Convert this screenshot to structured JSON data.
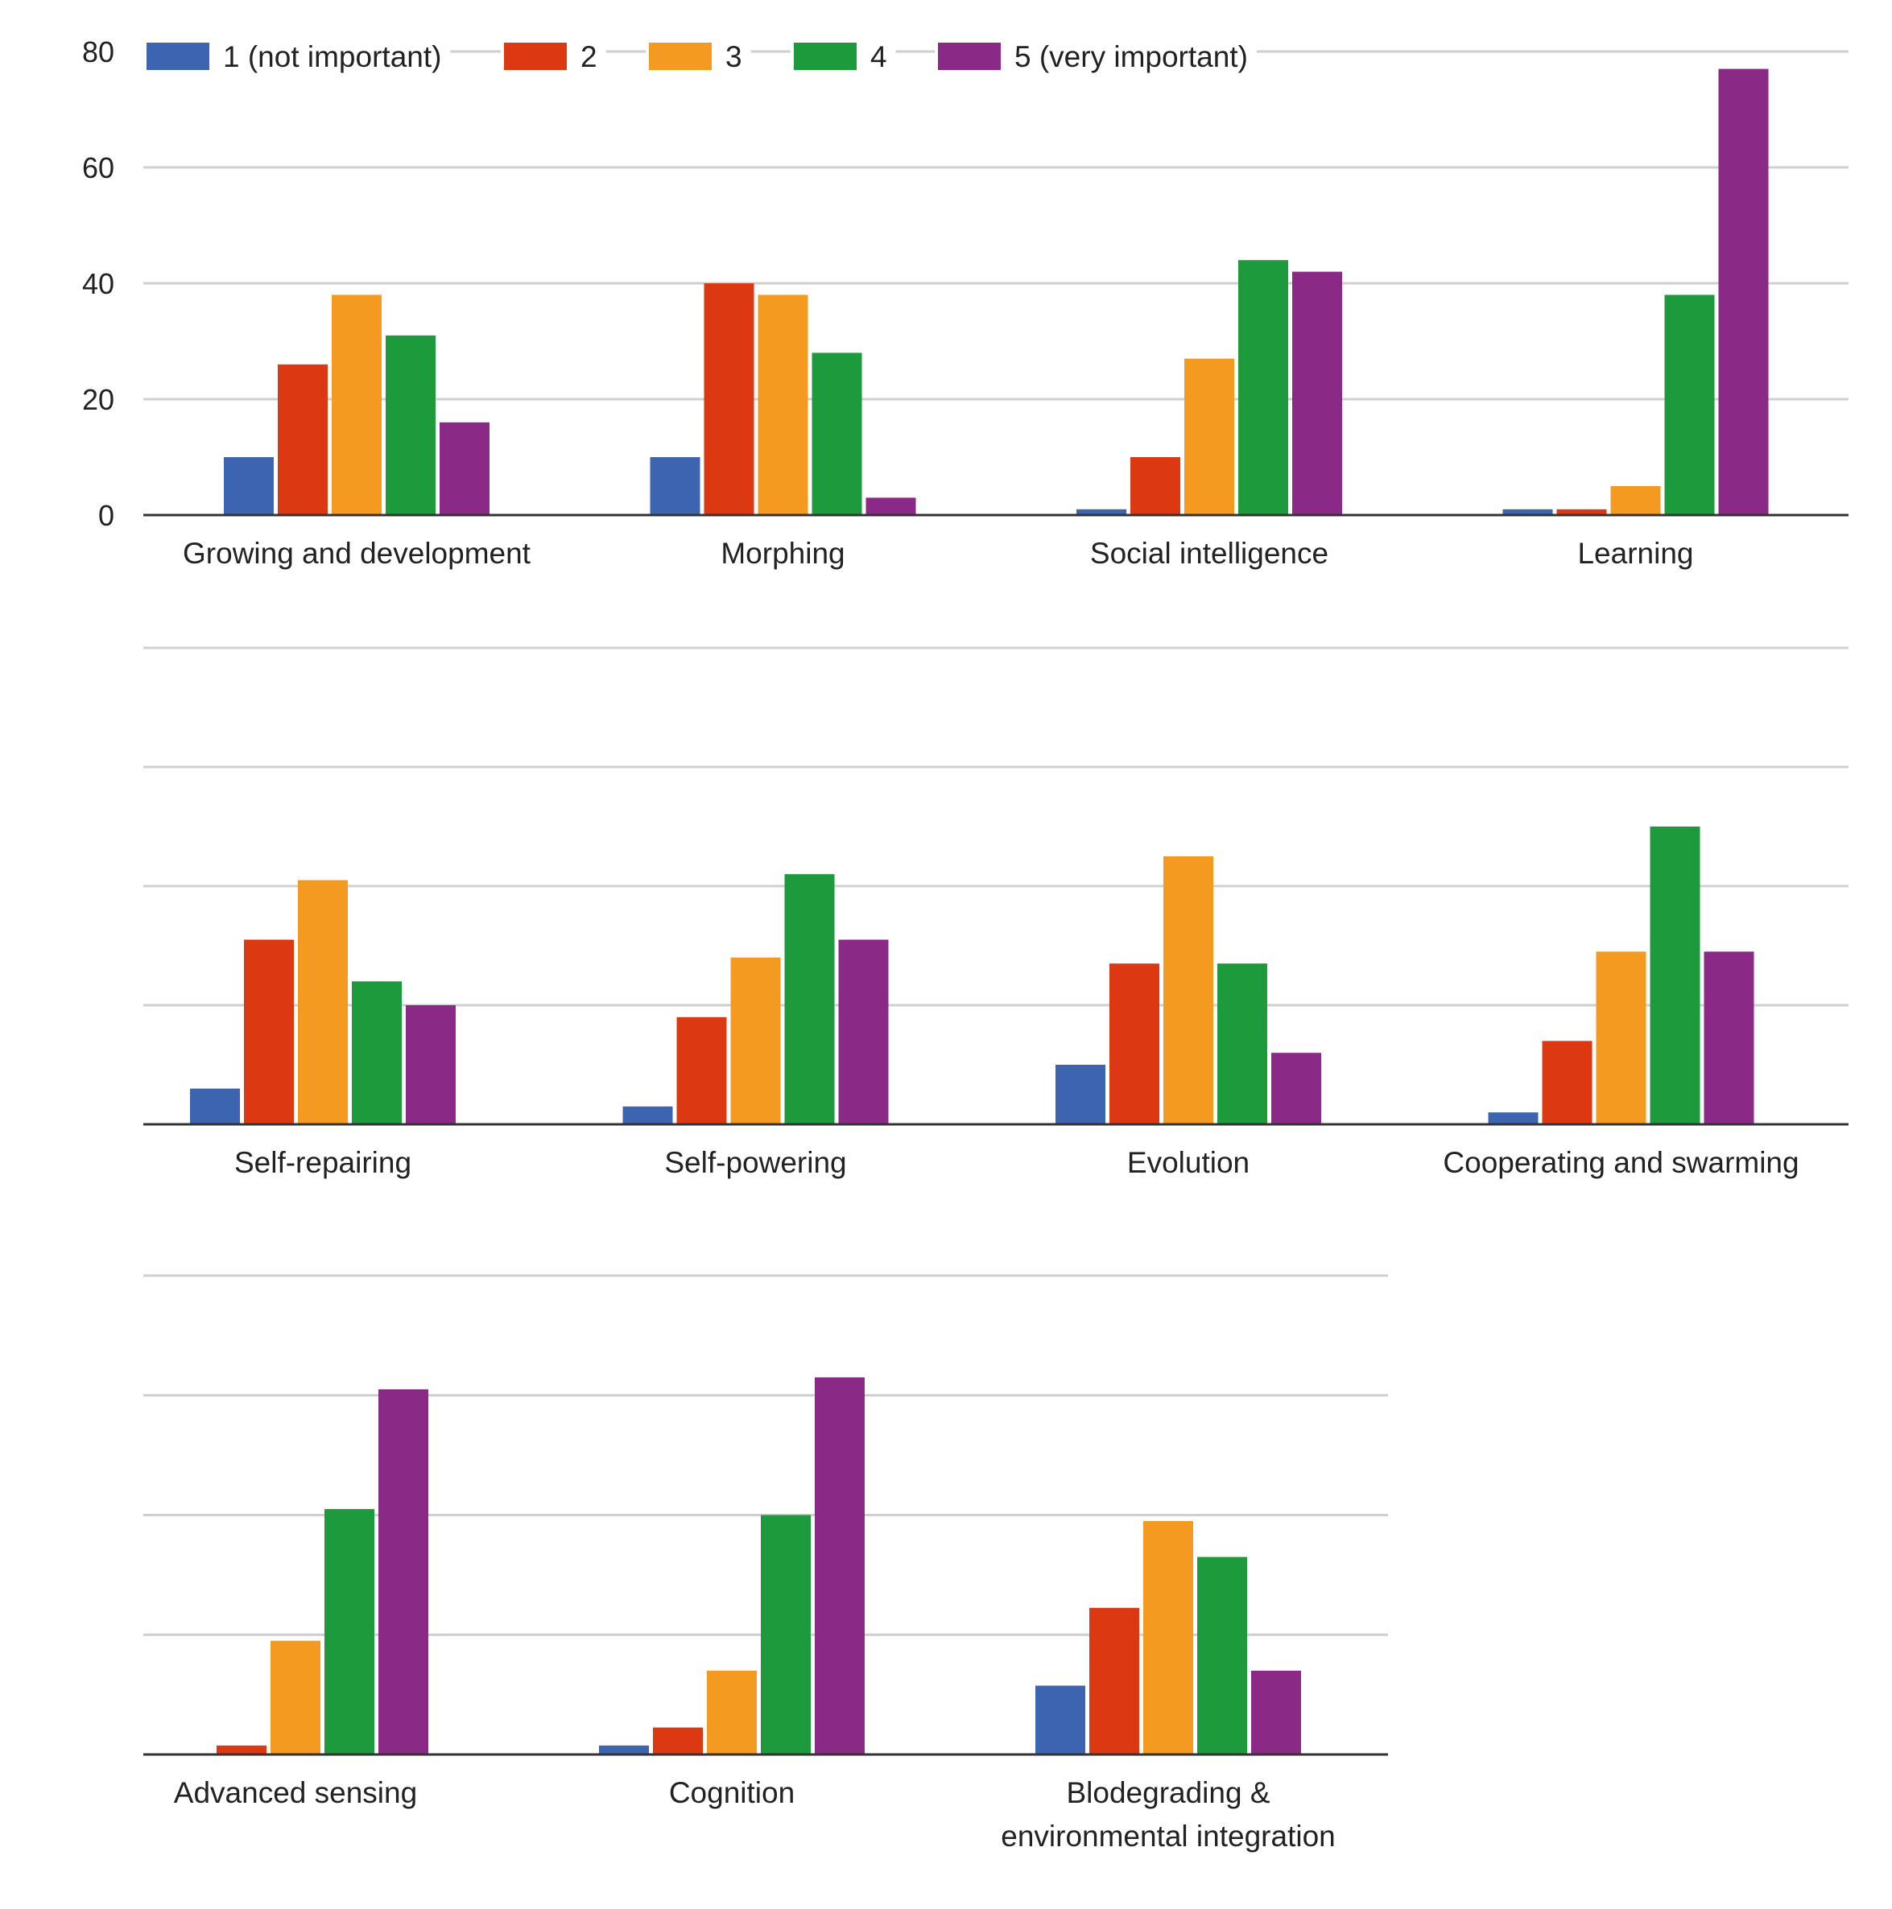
{
  "chart_data": {
    "type": "bar",
    "legend": {
      "position": "top-left",
      "entries": [
        "1 (not important)",
        "2",
        "3",
        "4",
        "5 (very important)"
      ]
    },
    "series_colors": [
      "#3c64b1",
      "#dc3912",
      "#f49a20",
      "#1d9a3c",
      "#8b2a86"
    ],
    "y_axis": {
      "ylim": [
        0,
        80
      ],
      "ticks": [
        0,
        20,
        40,
        60,
        80
      ],
      "tick_labels": [
        "0",
        "20",
        "40",
        "60",
        "80"
      ]
    },
    "grid": true,
    "rows": [
      {
        "categories": [
          {
            "label": [
              "Growing and development"
            ],
            "values": [
              10,
              26,
              38,
              31,
              16
            ]
          },
          {
            "label": [
              "Morphing"
            ],
            "values": [
              10,
              40,
              38,
              28,
              3
            ]
          },
          {
            "label": [
              "Social intelligence"
            ],
            "values": [
              1,
              10,
              27,
              44,
              42
            ]
          },
          {
            "label": [
              "Learning"
            ],
            "values": [
              1,
              1,
              5,
              38,
              77
            ]
          }
        ]
      },
      {
        "categories": [
          {
            "label": [
              "Self-repairing"
            ],
            "values": [
              6,
              31,
              41,
              24,
              20
            ]
          },
          {
            "label": [
              "Self-powering"
            ],
            "values": [
              3,
              18,
              28,
              42,
              31
            ]
          },
          {
            "label": [
              "Evolution"
            ],
            "values": [
              10,
              27,
              45,
              27,
              12
            ]
          },
          {
            "label": [
              "Cooperating and swarming"
            ],
            "values": [
              2,
              14,
              29,
              50,
              29
            ]
          }
        ]
      },
      {
        "categories": [
          {
            "label": [
              "Advanced sensing"
            ],
            "values": [
              0,
              1.5,
              19,
              41,
              61
            ]
          },
          {
            "label": [
              "Cognition"
            ],
            "values": [
              1.5,
              4.5,
              14,
              40,
              63
            ]
          },
          {
            "label": [
              "Blodegrading &",
              "environmental integration"
            ],
            "values": [
              11.5,
              24.5,
              39,
              33,
              14
            ]
          }
        ]
      }
    ]
  }
}
